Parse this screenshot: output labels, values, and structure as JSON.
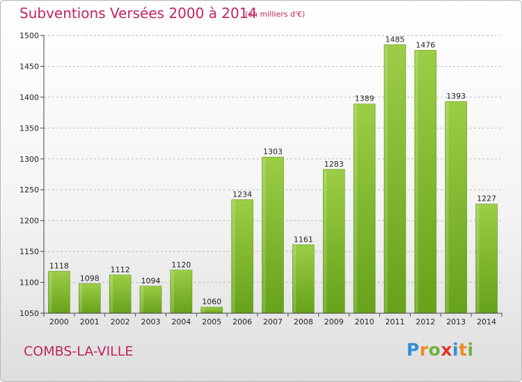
{
  "header": {
    "title": "Subventions Versées 2000 à 2014",
    "unit_note": "(en milliers d'€)"
  },
  "footer": {
    "place": "COMBS-LA-VILLE",
    "logo": {
      "letters": [
        "P",
        "r",
        "o",
        "x",
        "i",
        "t",
        "i"
      ],
      "colors": [
        "#2f8fd8",
        "#f08a1c",
        "#6fb33a",
        "#e2332a",
        "#2f8fd8",
        "#f08a1c",
        "#6fb33a"
      ]
    }
  },
  "colors": {
    "title": "#c0245c",
    "bar_light": "#9ccd46",
    "bar_dark": "#66a21a",
    "grid": "#bbbbbb"
  },
  "chart_data": {
    "type": "bar",
    "categories": [
      "2000",
      "2001",
      "2002",
      "2003",
      "2004",
      "2005",
      "2006",
      "2007",
      "2008",
      "2009",
      "2010",
      "2011",
      "2012",
      "2013",
      "2014"
    ],
    "values": [
      1118,
      1098,
      1112,
      1094,
      1120,
      1060,
      1234,
      1303,
      1161,
      1283,
      1389,
      1485,
      1476,
      1393,
      1227
    ],
    "ylim": [
      1050,
      1500
    ],
    "yticks": [
      1050,
      1100,
      1150,
      1200,
      1250,
      1300,
      1350,
      1400,
      1450,
      1500
    ],
    "grid": true,
    "data_labels": true
  }
}
